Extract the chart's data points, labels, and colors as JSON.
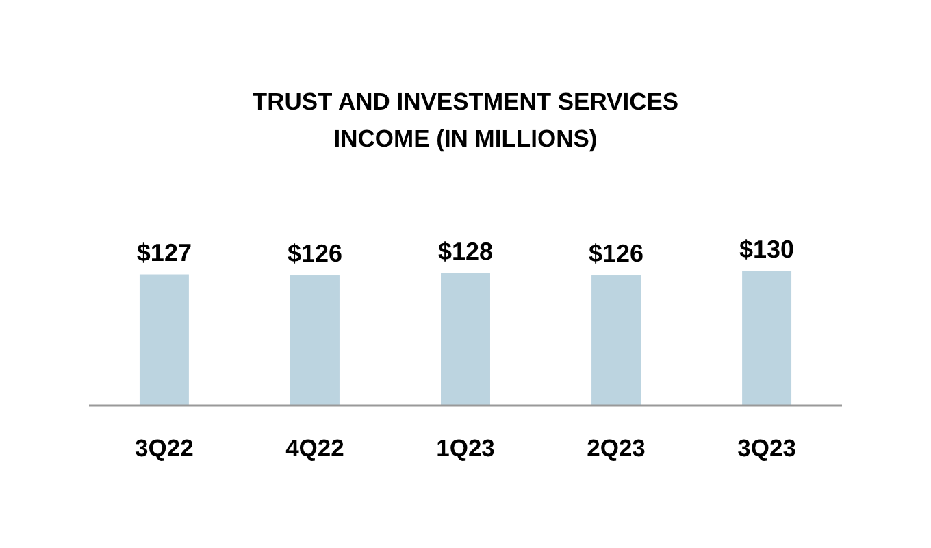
{
  "chart_data": {
    "type": "bar",
    "title": "TRUST AND INVESTMENT SERVICES INCOME (IN MILLIONS)",
    "categories": [
      "3Q22",
      "4Q22",
      "1Q23",
      "2Q23",
      "3Q23"
    ],
    "values": [
      127,
      126,
      128,
      126,
      130
    ],
    "value_labels": [
      "$127",
      "$126",
      "$128",
      "$126",
      "$130"
    ],
    "color": "#bcd4e0"
  }
}
